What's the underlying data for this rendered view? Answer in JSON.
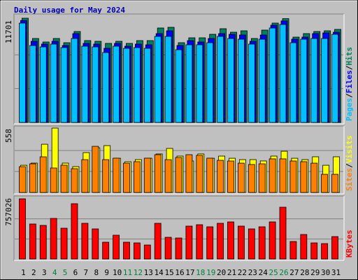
{
  "chart_data": {
    "type": "bar",
    "title": "Daily usage for May 2024",
    "categories": [
      "1",
      "2",
      "3",
      "4",
      "5",
      "6",
      "7",
      "8",
      "9",
      "10",
      "11",
      "12",
      "13",
      "14",
      "15",
      "16",
      "17",
      "18",
      "19",
      "20",
      "21",
      "22",
      "23",
      "24",
      "25",
      "26",
      "27",
      "28",
      "29",
      "30",
      "31"
    ],
    "category_colors": [
      "#000000",
      "#000000",
      "#000000",
      "#008040",
      "#008040",
      "#000000",
      "#000000",
      "#000000",
      "#000000",
      "#000000",
      "#008040",
      "#008040",
      "#000000",
      "#000000",
      "#000000",
      "#000000",
      "#000000",
      "#008040",
      "#008040",
      "#000000",
      "#000000",
      "#000000",
      "#000000",
      "#000000",
      "#008040",
      "#008040",
      "#000000",
      "#000000",
      "#000000",
      "#000000",
      "#000000"
    ],
    "legend_separator": "/",
    "panels": [
      {
        "ylim": [
          0,
          11701
        ],
        "yticks": [
          11701
        ],
        "series": [
          {
            "name": "Hits",
            "color": "#00805c",
            "values": [
              11701,
              9361,
              8958,
              9361,
              8877,
              10168,
              9119,
              9038,
              8796,
              9038,
              8796,
              9119,
              9119,
              10572,
              10652,
              8877,
              9442,
              9442,
              9845,
              10491,
              10087,
              10249,
              9361,
              10330,
              11137,
              11650,
              9522,
              9926,
              10168,
              10249,
              10410
            ]
          },
          {
            "name": "Files",
            "color": "#0000ff",
            "values": [
              11600,
              9200,
              8877,
              9200,
              8716,
              10087,
              8958,
              8877,
              8393,
              8958,
              8635,
              8877,
              8796,
              10087,
              10410,
              8716,
              9280,
              9119,
              9522,
              10087,
              10007,
              9926,
              9200,
              9926,
              11056,
              11550,
              9442,
              9684,
              10087,
              10168,
              10249
            ]
          },
          {
            "name": "Pages",
            "color": "#00c0ff",
            "values": [
              11459,
              8877,
              8716,
              9038,
              8635,
              9684,
              8796,
              8716,
              8070,
              8796,
              8554,
              8635,
              8554,
              9926,
              9926,
              8393,
              8958,
              8958,
              9200,
              9926,
              9684,
              9603,
              9038,
              9603,
              10894,
              11300,
              9200,
              9603,
              9684,
              9684,
              10168
            ]
          }
        ]
      },
      {
        "ylim": [
          0,
          558
        ],
        "yticks": [
          558
        ],
        "series": [
          {
            "name": "Visits",
            "color": "#ffff00",
            "values": [
              229,
              248,
              415,
              558,
              248,
              217,
              341,
              384,
              403,
              291,
              260,
              279,
              291,
              329,
              378,
              310,
              267,
              329,
              291,
              310,
              291,
              279,
              279,
              267,
              310,
              353,
              291,
              279,
              304,
              229,
              304
            ]
          },
          {
            "name": "Sites",
            "color": "#ff8000",
            "values": [
              229,
              254,
              316,
              217,
              242,
              211,
              291,
              409,
              291,
              304,
              260,
              273,
              304,
              335,
              291,
              310,
              335,
              329,
              304,
              285,
              279,
              260,
              248,
              254,
              298,
              298,
              279,
              273,
              260,
              161,
              161
            ]
          }
        ]
      },
      {
        "ylim": [
          0,
          757026
        ],
        "yticks": [
          757026
        ],
        "series": [
          {
            "name": "KBytes",
            "color": "#ff0000",
            "values": [
              757026,
              440150,
              422544,
              510574,
              387332,
              695437,
              448953,
              378529,
              211272,
              299302,
              211272,
              202469,
              176060,
              448953,
              272893,
              264090,
              413741,
              431347,
              404938,
              448953,
              466559,
              413741,
              378529,
              404938,
              466559,
              651422,
              220075,
              308105,
              202469,
              193666,
              281696
            ]
          }
        ]
      }
    ]
  }
}
